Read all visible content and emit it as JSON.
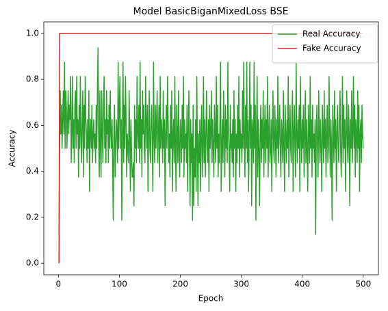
{
  "chart_data": {
    "type": "line",
    "title": "Model BasicBiganMixedLoss BSE",
    "xlabel": "Epoch",
    "ylabel": "Accuracy",
    "xlim": [
      -23.95,
      524.95
    ],
    "ylim": [
      -0.05,
      1.05
    ],
    "xticks": [
      0,
      100,
      200,
      300,
      400,
      500
    ],
    "yticks": [
      {
        "value": 0,
        "label": "0.0"
      },
      0.2,
      0.4,
      0.6,
      0.8,
      {
        "value": 1,
        "label": "1.0"
      }
    ],
    "legend": "upper right",
    "x": [
      1,
      2,
      3,
      4,
      5,
      6,
      7,
      8,
      9,
      10,
      11,
      12,
      13,
      14,
      15,
      16,
      17,
      18,
      19,
      20,
      21,
      22,
      23,
      24,
      25,
      26,
      27,
      28,
      29,
      30,
      31,
      32,
      33,
      34,
      35,
      36,
      37,
      38,
      39,
      40,
      41,
      42,
      43,
      44,
      45,
      46,
      47,
      48,
      49,
      50,
      51,
      52,
      53,
      54,
      55,
      56,
      57,
      58,
      59,
      60,
      61,
      62,
      63,
      64,
      65,
      66,
      67,
      68,
      69,
      70,
      71,
      72,
      73,
      74,
      75,
      76,
      77,
      78,
      79,
      80,
      81,
      82,
      83,
      84,
      85,
      86,
      87,
      88,
      89,
      90,
      91,
      92,
      93,
      94,
      95,
      96,
      97,
      98,
      99,
      100,
      101,
      102,
      103,
      104,
      105,
      106,
      107,
      108,
      109,
      110,
      111,
      112,
      113,
      114,
      115,
      116,
      117,
      118,
      119,
      120,
      121,
      122,
      123,
      124,
      125,
      126,
      127,
      128,
      129,
      130,
      131,
      132,
      133,
      134,
      135,
      136,
      137,
      138,
      139,
      140,
      141,
      142,
      143,
      144,
      145,
      146,
      147,
      148,
      149,
      150,
      151,
      152,
      153,
      154,
      155,
      156,
      157,
      158,
      159,
      160,
      161,
      162,
      163,
      164,
      165,
      166,
      167,
      168,
      169,
      170,
      171,
      172,
      173,
      174,
      175,
      176,
      177,
      178,
      179,
      180,
      181,
      182,
      183,
      184,
      185,
      186,
      187,
      188,
      189,
      190,
      191,
      192,
      193,
      194,
      195,
      196,
      197,
      198,
      199,
      200,
      201,
      202,
      203,
      204,
      205,
      206,
      207,
      208,
      209,
      210,
      211,
      212,
      213,
      214,
      215,
      216,
      217,
      218,
      219,
      220,
      221,
      222,
      223,
      224,
      225,
      226,
      227,
      228,
      229,
      230,
      231,
      232,
      233,
      234,
      235,
      236,
      237,
      238,
      239,
      240,
      241,
      242,
      243,
      244,
      245,
      246,
      247,
      248,
      249,
      250,
      251,
      252,
      253,
      254,
      255,
      256,
      257,
      258,
      259,
      260,
      261,
      262,
      263,
      264,
      265,
      266,
      267,
      268,
      269,
      270,
      271,
      272,
      273,
      274,
      275,
      276,
      277,
      278,
      279,
      280,
      281,
      282,
      283,
      284,
      285,
      286,
      287,
      288,
      289,
      290,
      291,
      292,
      293,
      294,
      295,
      296,
      297,
      298,
      299,
      300,
      301,
      302,
      303,
      304,
      305,
      306,
      307,
      308,
      309,
      310,
      311,
      312,
      313,
      314,
      315,
      316,
      317,
      318,
      319,
      320,
      321,
      322,
      323,
      324,
      325,
      326,
      327,
      328,
      329,
      330,
      331,
      332,
      333,
      334,
      335,
      336,
      337,
      338,
      339,
      340,
      341,
      342,
      343,
      344,
      345,
      346,
      347,
      348,
      349,
      350,
      351,
      352,
      353,
      354,
      355,
      356,
      357,
      358,
      359,
      360,
      361,
      362,
      363,
      364,
      365,
      366,
      367,
      368,
      369,
      370,
      371,
      372,
      373,
      374,
      375,
      376,
      377,
      378,
      379,
      380,
      381,
      382,
      383,
      384,
      385,
      386,
      387,
      388,
      389,
      390,
      391,
      392,
      393,
      394,
      395,
      396,
      397,
      398,
      399,
      400,
      401,
      402,
      403,
      404,
      405,
      406,
      407,
      408,
      409,
      410,
      411,
      412,
      413,
      414,
      415,
      416,
      417,
      418,
      419,
      420,
      421,
      422,
      423,
      424,
      425,
      426,
      427,
      428,
      429,
      430,
      431,
      432,
      433,
      434,
      435,
      436,
      437,
      438,
      439,
      440,
      441,
      442,
      443,
      444,
      445,
      446,
      447,
      448,
      449,
      450,
      451,
      452,
      453,
      454,
      455,
      456,
      457,
      458,
      459,
      460,
      461,
      462,
      463,
      464,
      465,
      466,
      467,
      468,
      469,
      470,
      471,
      472,
      473,
      474,
      475,
      476,
      477,
      478,
      479,
      480,
      481,
      482,
      483,
      484,
      485,
      486,
      487,
      488,
      489,
      490,
      491,
      492,
      493,
      494,
      495,
      496,
      497,
      498,
      499,
      500
    ],
    "series": [
      {
        "name": "Real Accuracy",
        "color": "#2ca02c",
        "values": [
          0.125,
          0.5,
          0.75,
          0.5625,
          0.6875,
          0.5,
          0.625,
          0.75,
          0.5625,
          0.875,
          0.5,
          0.75,
          0.6875,
          0.5,
          0.625,
          0.75,
          0.5625,
          0.6875,
          0.625,
          0.8125,
          0.4375,
          0.5625,
          0.8125,
          0.5,
          0.625,
          0.4375,
          0.6875,
          0.75,
          0.5,
          0.8125,
          0.5625,
          0.625,
          0.375,
          0.6875,
          0.5,
          0.8125,
          0.5625,
          0.4375,
          0.625,
          0.75,
          0.375,
          0.6875,
          0.5,
          0.8125,
          0.625,
          0.5625,
          0.4375,
          0.625,
          0.5,
          0.75,
          0.3125,
          0.5625,
          0.625,
          0.5,
          0.6875,
          0.4375,
          0.5625,
          0.625,
          0.5,
          0.5625,
          0.4375,
          0.6875,
          0.5,
          0.75,
          0.9375,
          0.5625,
          0.375,
          0.75,
          0.5,
          0.375,
          0.75,
          0.5625,
          0.4375,
          0.6875,
          0.8125,
          0.5,
          0.625,
          0.4375,
          0.75,
          0.5625,
          0.625,
          0.4375,
          0.6875,
          0.5,
          0.75,
          0.5625,
          0.5,
          0.625,
          0.4375,
          0.1875,
          0.5625,
          0.6875,
          0.375,
          0.5,
          0.625,
          0.5625,
          0.4375,
          0.875,
          0.5,
          0.6875,
          0.8125,
          0.5,
          0.625,
          0.1875,
          0.5625,
          0.875,
          0.4375,
          0.6875,
          0.5,
          0.8125,
          0.625,
          0.375,
          0.5625,
          0.5,
          0.4375,
          0.75,
          0.5625,
          0.3125,
          0.625,
          0.5,
          0.375,
          0.375,
          0.4375,
          0.25,
          0.6875,
          0.5,
          0.625,
          0.4375,
          0.8125,
          0.5625,
          0.5,
          0.6875,
          0.4375,
          0.875,
          0.5,
          0.625,
          0.375,
          0.75,
          0.5625,
          0.6875,
          0.5,
          0.4375,
          0.8125,
          0.625,
          0.5,
          0.6875,
          0.3125,
          0.5625,
          0.75,
          0.5,
          0.4375,
          0.625,
          0.6875,
          0.5,
          0.3125,
          0.875,
          0.5625,
          0.4375,
          0.6875,
          0.5,
          0.625,
          0.75,
          0.4375,
          0.5625,
          0.6875,
          0.375,
          0.8125,
          0.5,
          0.625,
          0.5625,
          0.4375,
          0.75,
          0.5,
          0.625,
          0.25,
          0.5625,
          0.6875,
          0.5,
          0.8125,
          0.625,
          0.4375,
          0.5625,
          0.375,
          0.6875,
          0.5,
          0.75,
          0.3125,
          0.5625,
          0.625,
          0.4375,
          0.8125,
          0.5,
          0.3125,
          0.6875,
          0.5625,
          0.4375,
          0.75,
          0.5,
          0.375,
          0.625,
          0.5625,
          0.4375,
          0.6875,
          0.5,
          0.8125,
          0.375,
          0.625,
          0.5,
          0.5625,
          0.4375,
          0.6875,
          0.3125,
          0.5625,
          0.75,
          0.5,
          0.25,
          0.625,
          0.4375,
          0.5625,
          0.1875,
          0.6875,
          0.25,
          0.5,
          0.375,
          0.625,
          0.3125,
          0.8125,
          0.5,
          0.25,
          0.5625,
          0.4375,
          0.625,
          0.3125,
          0.5625,
          0.6875,
          0.375,
          0.5,
          0.8125,
          0.4375,
          0.625,
          0.375,
          0.5625,
          0.75,
          0.5,
          0.4375,
          0.625,
          0.3125,
          0.6875,
          0.5,
          0.5625,
          0.75,
          0.4375,
          0.625,
          0.5,
          0.375,
          0.6875,
          0.5625,
          0.4375,
          0.8125,
          0.5,
          0.6875,
          0.375,
          0.5625,
          0.4375,
          0.625,
          0.875,
          0.3125,
          0.5,
          0.625,
          0.4375,
          0.75,
          0.5625,
          0.375,
          0.6875,
          0.5,
          0.625,
          0.4375,
          0.875,
          0.5625,
          0.5,
          0.3125,
          0.6875,
          0.5,
          0.5625,
          0.4375,
          0.625,
          0.375,
          0.75,
          0.5,
          0.625,
          0.3125,
          0.5625,
          0.4375,
          0.6875,
          0.5,
          0.8125,
          0.375,
          0.625,
          0.5,
          0.5625,
          0.4375,
          0.75,
          0.5,
          0.875,
          0.5625,
          0.375,
          0.6875,
          0.5,
          0.875,
          0.4375,
          0.625,
          0.3125,
          0.5625,
          0.875,
          0.5,
          0.6875,
          0.25,
          0.625,
          0.5625,
          0.4375,
          0.875,
          0.5,
          0.6875,
          0.1875,
          0.5625,
          0.8125,
          0.375,
          0.625,
          0.5,
          0.25,
          0.5625,
          0.6875,
          0.4375,
          0.625,
          0.5,
          0.75,
          0.375,
          0.5625,
          0.6875,
          0.4375,
          0.625,
          0.5,
          0.8125,
          0.375,
          0.5625,
          0.6875,
          0.4375,
          0.5,
          0.625,
          0.3125,
          0.5625,
          0.75,
          0.5,
          0.4375,
          0.6875,
          0.5625,
          0.375,
          0.625,
          0.5,
          0.8125,
          0.4375,
          0.5625,
          0.6875,
          0.5,
          0.375,
          0.625,
          0.5625,
          0.4375,
          0.75,
          0.5,
          0.3125,
          0.6875,
          0.5625,
          0.4375,
          0.625,
          0.5,
          0.8125,
          0.375,
          0.5625,
          0.6875,
          0.5,
          0.4375,
          0.625,
          0.75,
          0.3125,
          0.5625,
          0.6875,
          0.5,
          0.375,
          0.875,
          0.5625,
          0.4375,
          0.625,
          0.5,
          0.6875,
          0.3125,
          0.8125,
          0.5625,
          0.4375,
          0.625,
          0.5,
          0.6875,
          0.375,
          0.5625,
          0.75,
          0.4375,
          0.625,
          0.5,
          0.3125,
          0.6875,
          0.5625,
          0.4375,
          0.8125,
          0.5,
          0.625,
          0.375,
          0.6875,
          0.5,
          0.5625,
          0.4375,
          0.625,
          0.125,
          0.5625,
          0.6875,
          0.5,
          0.375,
          0.75,
          0.5625,
          0.4375,
          0.625,
          0.5,
          0.3125,
          0.6875,
          0.5625,
          0.4375,
          0.75,
          0.5,
          0.625,
          0.375,
          0.5625,
          0.6875,
          0.4375,
          0.5,
          0.8125,
          0.5625,
          0.375,
          0.625,
          0.5,
          0.1875,
          0.6875,
          0.5625,
          0.4375,
          0.75,
          0.5,
          0.625,
          0.3125,
          0.5625,
          0.6875,
          0.5,
          0.4375,
          0.625,
          0.75,
          0.5,
          0.375,
          0.5625,
          0.8125,
          0.4375,
          0.6875,
          0.5,
          0.625,
          0.3125,
          0.5625,
          0.75,
          0.5,
          0.4375,
          0.6875,
          0.5625,
          0.25,
          0.625,
          0.5,
          0.75,
          0.4375,
          0.5625,
          0.8125,
          0.5,
          0.6875,
          0.375,
          0.625,
          0.5625,
          0.4375,
          0.75,
          0.5,
          0.6875,
          0.3125,
          0.5625,
          0.625,
          0.4375,
          0.6875,
          0.5625,
          0.5
        ]
      },
      {
        "name": "Fake Accuracy",
        "color": "#d62728",
        "x": [
          1,
          2,
          500
        ],
        "values": [
          0,
          1,
          1
        ]
      }
    ]
  }
}
